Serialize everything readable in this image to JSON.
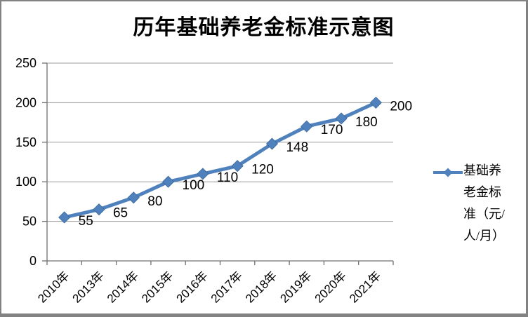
{
  "chart_data": {
    "type": "line",
    "title": "历年基础养老金标准示意图",
    "categories": [
      "2010年",
      "2013年",
      "2014年",
      "2015年",
      "2016年",
      "2017年",
      "2018年",
      "2019年",
      "2020年",
      "2021年"
    ],
    "series": [
      {
        "name": "基础养老金标准（元/人/月）",
        "values": [
          55,
          65,
          80,
          100,
          110,
          120,
          148,
          170,
          180,
          200
        ],
        "color": "#4f81bd",
        "marker": "diamond"
      }
    ],
    "xlabel": "",
    "ylabel": "",
    "ylim": [
      0,
      250
    ],
    "yticks": [
      0,
      50,
      100,
      150,
      200,
      250
    ],
    "grid": true,
    "show_data_labels": true,
    "legend_position": "right",
    "x_label_rotation_deg": -45
  },
  "legend": {
    "label": "基础养老金标准（元/人/月）",
    "label_lines": [
      "基础养",
      "老金标",
      "准（元/",
      "人/月）"
    ]
  },
  "colors": {
    "series": "#4f81bd",
    "series_edge": "#3a689b",
    "gridline": "#9c9c9c",
    "axis": "#707070",
    "text": "#000000",
    "border": "#828282",
    "background": "#ffffff"
  }
}
